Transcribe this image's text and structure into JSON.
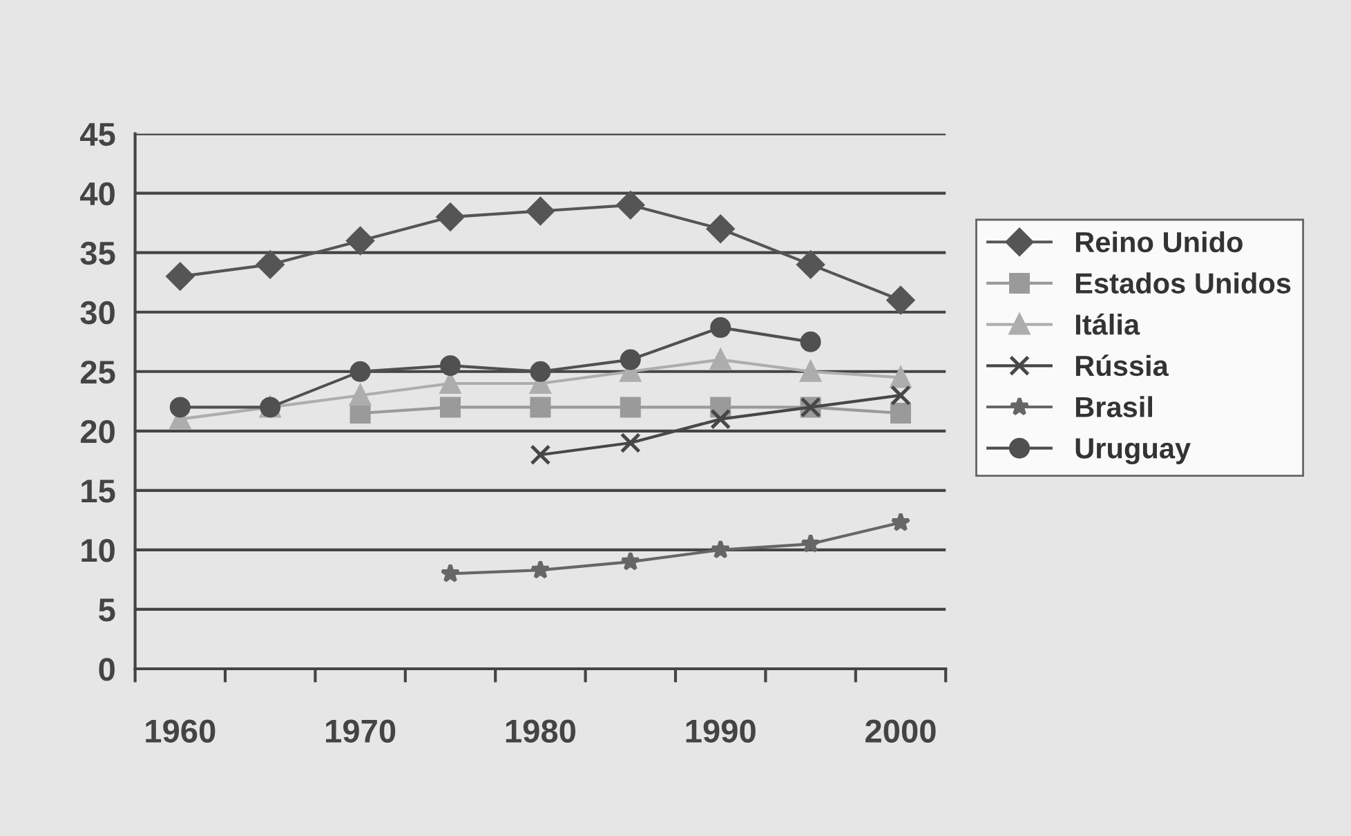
{
  "chart_data": {
    "type": "line",
    "categories": [
      "1960",
      null,
      "1970",
      null,
      "1980",
      null,
      "1990",
      null,
      "2000"
    ],
    "series": [
      {
        "name": "Reino Unido",
        "color": "#555555",
        "marker": "diamond",
        "values": [
          33,
          34,
          36,
          38,
          38.5,
          39,
          37,
          34,
          31
        ]
      },
      {
        "name": "Estados Unidos",
        "color": "#9a9a9a",
        "marker": "square",
        "values": [
          null,
          null,
          21.5,
          22,
          22,
          22,
          22,
          22,
          21.5
        ]
      },
      {
        "name": "Itália",
        "color": "#adadad",
        "marker": "triangle",
        "values": [
          21,
          22,
          23,
          24,
          24,
          25,
          26,
          25,
          24.5
        ]
      },
      {
        "name": "Rússia",
        "color": "#474747",
        "marker": "cross",
        "values": [
          null,
          null,
          null,
          null,
          18,
          19,
          21,
          22,
          23
        ]
      },
      {
        "name": "Brasil",
        "color": "#666666",
        "marker": "star",
        "values": [
          null,
          null,
          null,
          8,
          8.3,
          9,
          10,
          10.5,
          12.3
        ]
      },
      {
        "name": "Uruguay",
        "color": "#505050",
        "marker": "circle",
        "values": [
          22,
          22,
          25,
          25.5,
          25,
          26,
          28.7,
          27.5,
          null
        ]
      }
    ],
    "ylim": [
      0,
      45
    ],
    "yticks": [
      0,
      5,
      10,
      15,
      20,
      25,
      30,
      35,
      40,
      45
    ],
    "grid": "y",
    "legend": "right",
    "line_style": "solid"
  }
}
